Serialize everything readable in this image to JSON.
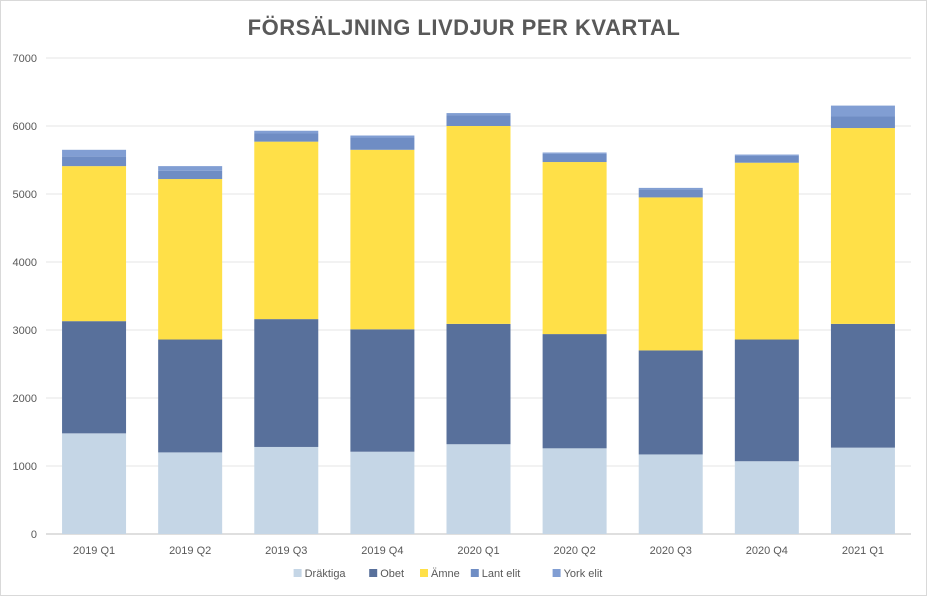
{
  "chart_data": {
    "type": "bar",
    "stacked": true,
    "title": "FÖRSÄLJNING LIVDJUR PER KVARTAL",
    "xlabel": "",
    "ylabel": "",
    "ylim": [
      0,
      7000
    ],
    "yticks": [
      0,
      1000,
      2000,
      3000,
      4000,
      5000,
      6000,
      7000
    ],
    "grid": true,
    "legend": "bottom",
    "categories": [
      "2019 Q1",
      "2019 Q2",
      "2019 Q3",
      "2019 Q4",
      "2020 Q1",
      "2020 Q2",
      "2020 Q3",
      "2020 Q4",
      "2021 Q1"
    ],
    "series": [
      {
        "name": "Dräktiga",
        "color": "#c5d6e6",
        "values": [
          1480,
          1200,
          1280,
          1210,
          1320,
          1260,
          1170,
          1070,
          1270
        ]
      },
      {
        "name": "Obet",
        "color": "#58709b",
        "values": [
          1650,
          1660,
          1880,
          1800,
          1770,
          1680,
          1530,
          1790,
          1820
        ]
      },
      {
        "name": "Ämne",
        "color": "#ffe048",
        "values": [
          2280,
          2360,
          2610,
          2640,
          2910,
          2530,
          2250,
          2600,
          2880
        ]
      },
      {
        "name": "Lant elit",
        "color": "#6f8dc4",
        "values": [
          140,
          120,
          120,
          180,
          160,
          120,
          120,
          100,
          170
        ]
      },
      {
        "name": "York elit",
        "color": "#819ed3",
        "values": [
          100,
          70,
          40,
          30,
          30,
          20,
          20,
          20,
          160
        ]
      }
    ]
  }
}
